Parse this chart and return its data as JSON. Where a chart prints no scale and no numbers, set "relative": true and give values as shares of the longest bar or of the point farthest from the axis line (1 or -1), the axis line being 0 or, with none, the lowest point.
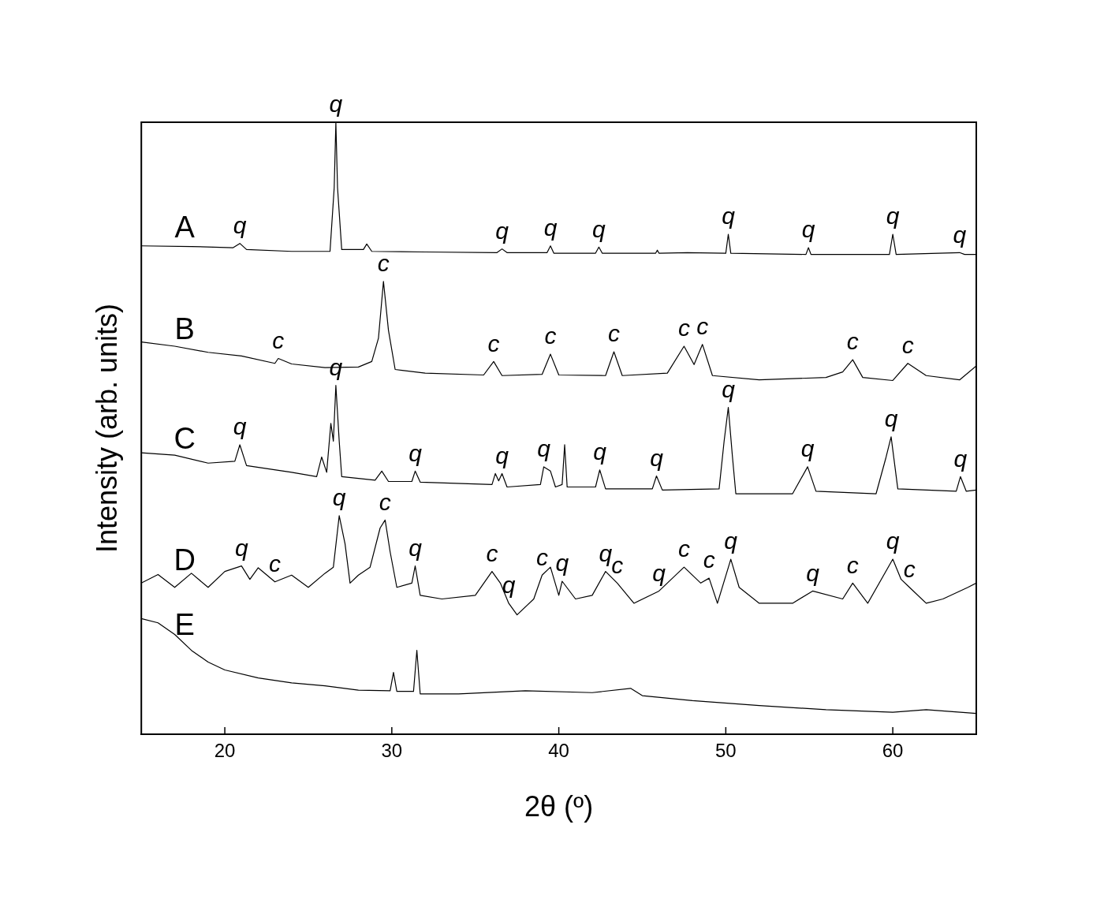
{
  "chart_data": {
    "type": "line",
    "relative": true,
    "xlabel": "2θ (º)",
    "ylabel": "Intensity (arb. units)",
    "xlim": [
      15,
      65
    ],
    "xticks": [
      20,
      30,
      40,
      50,
      60
    ],
    "legend": false,
    "grid": false,
    "series": [
      {
        "name": "A",
        "color": "#000000",
        "x": [
          15,
          18,
          20.5,
          20.9,
          21.3,
          24,
          26.3,
          26.55,
          26.65,
          26.75,
          27,
          28.3,
          28.5,
          28.8,
          32,
          36.3,
          36.6,
          36.9,
          39.3,
          39.5,
          39.7,
          42.2,
          42.4,
          42.6,
          45.8,
          45.9,
          46,
          47.7,
          50,
          50.15,
          50.3,
          54.8,
          54.95,
          55.1,
          59.8,
          60,
          60.2,
          64,
          64.3,
          65
        ],
        "values": [
          0.798,
          0.797,
          0.795,
          0.802,
          0.792,
          0.789,
          0.789,
          0.893,
          1,
          0.893,
          0.792,
          0.792,
          0.801,
          0.789,
          0.788,
          0.787,
          0.793,
          0.787,
          0.787,
          0.798,
          0.786,
          0.786,
          0.796,
          0.786,
          0.786,
          0.791,
          0.786,
          0.787,
          0.786,
          0.817,
          0.786,
          0.784,
          0.795,
          0.784,
          0.784,
          0.817,
          0.784,
          0.787,
          0.784,
          0.784
        ]
      },
      {
        "name": "B",
        "color": "#000000",
        "x": [
          15,
          17,
          19,
          21,
          23,
          23.2,
          24,
          26,
          28,
          28.8,
          29.2,
          29.5,
          29.8,
          30.2,
          32,
          35.5,
          36.1,
          36.6,
          39,
          39.5,
          40,
          42.8,
          43.3,
          43.8,
          46.5,
          47.5,
          48.1,
          48.6,
          49.2,
          52,
          56,
          57,
          57.6,
          58.2,
          60,
          60.9,
          62,
          64,
          65
        ],
        "values": [
          0.641,
          0.634,
          0.624,
          0.618,
          0.606,
          0.614,
          0.605,
          0.599,
          0.6,
          0.609,
          0.647,
          0.74,
          0.66,
          0.596,
          0.59,
          0.587,
          0.609,
          0.586,
          0.588,
          0.621,
          0.587,
          0.586,
          0.625,
          0.586,
          0.59,
          0.634,
          0.604,
          0.637,
          0.586,
          0.579,
          0.583,
          0.592,
          0.612,
          0.583,
          0.578,
          0.606,
          0.586,
          0.579,
          0.602
        ]
      },
      {
        "name": "C",
        "color": "#000000",
        "x": [
          15,
          17,
          19,
          20.6,
          20.9,
          21.3,
          24,
          25.5,
          25.8,
          26.1,
          26.35,
          26.5,
          26.65,
          26.85,
          27,
          29,
          29.4,
          29.8,
          31.2,
          31.4,
          31.7,
          36,
          36.2,
          36.4,
          36.6,
          36.9,
          38.9,
          39.1,
          39.5,
          39.8,
          40.2,
          40.35,
          40.5,
          42.2,
          42.45,
          42.8,
          45.6,
          45.85,
          46.2,
          49.6,
          49.9,
          50.15,
          50.4,
          50.6,
          54,
          54.9,
          55.4,
          59,
          59.6,
          59.9,
          60.3,
          63.8,
          64.05,
          64.4,
          65
        ],
        "values": [
          0.46,
          0.456,
          0.443,
          0.446,
          0.473,
          0.439,
          0.428,
          0.421,
          0.453,
          0.428,
          0.508,
          0.479,
          0.57,
          0.479,
          0.421,
          0.415,
          0.43,
          0.413,
          0.413,
          0.43,
          0.412,
          0.408,
          0.426,
          0.414,
          0.426,
          0.404,
          0.408,
          0.437,
          0.43,
          0.404,
          0.408,
          0.473,
          0.404,
          0.404,
          0.432,
          0.401,
          0.401,
          0.422,
          0.399,
          0.401,
          0.479,
          0.534,
          0.453,
          0.393,
          0.393,
          0.437,
          0.397,
          0.393,
          0.453,
          0.486,
          0.401,
          0.397,
          0.421,
          0.397,
          0.399
        ]
      },
      {
        "name": "D",
        "color": "#000000",
        "x": [
          15,
          16,
          17,
          18,
          19,
          20,
          21,
          21.5,
          22,
          23,
          24,
          25,
          26,
          26.5,
          26.85,
          27.2,
          27.5,
          28,
          28.7,
          29.3,
          29.6,
          29.9,
          30.3,
          31.2,
          31.4,
          31.7,
          33,
          35,
          36,
          36.5,
          37,
          37.5,
          38.5,
          39,
          39.5,
          40,
          40.2,
          41,
          42,
          42.8,
          43.5,
          44.5,
          46,
          47.5,
          48.5,
          49,
          49.5,
          50.3,
          50.8,
          52,
          54,
          55.2,
          57,
          57.6,
          58.5,
          60,
          60.5,
          61,
          62,
          63,
          64.5,
          65
        ],
        "values": [
          0.247,
          0.261,
          0.24,
          0.263,
          0.24,
          0.266,
          0.275,
          0.253,
          0.272,
          0.249,
          0.26,
          0.24,
          0.263,
          0.273,
          0.357,
          0.311,
          0.247,
          0.26,
          0.273,
          0.337,
          0.35,
          0.298,
          0.24,
          0.247,
          0.275,
          0.227,
          0.221,
          0.227,
          0.266,
          0.247,
          0.214,
          0.195,
          0.221,
          0.26,
          0.273,
          0.227,
          0.25,
          0.221,
          0.227,
          0.266,
          0.247,
          0.214,
          0.234,
          0.273,
          0.247,
          0.255,
          0.214,
          0.286,
          0.24,
          0.214,
          0.214,
          0.234,
          0.221,
          0.247,
          0.214,
          0.286,
          0.253,
          0.24,
          0.214,
          0.221,
          0.24,
          0.247
        ]
      },
      {
        "name": "E",
        "color": "#000000",
        "x": [
          15,
          16,
          17,
          18,
          19,
          20,
          22,
          24,
          26,
          28,
          29.9,
          30.1,
          30.3,
          31.3,
          31.5,
          31.7,
          34,
          38,
          42,
          44.3,
          45,
          48,
          52,
          56,
          60,
          62,
          65
        ],
        "values": [
          0.189,
          0.182,
          0.163,
          0.137,
          0.118,
          0.105,
          0.092,
          0.084,
          0.079,
          0.072,
          0.071,
          0.101,
          0.07,
          0.07,
          0.137,
          0.066,
          0.066,
          0.071,
          0.068,
          0.075,
          0.063,
          0.055,
          0.047,
          0.04,
          0.036,
          0.04,
          0.034
        ]
      }
    ],
    "annotations": [
      {
        "text": "q",
        "x": 20.9,
        "y": 0.802
      },
      {
        "text": "q",
        "x": 26.65,
        "y": 1
      },
      {
        "text": "q",
        "x": 36.6,
        "y": 0.793
      },
      {
        "text": "q",
        "x": 39.5,
        "y": 0.798
      },
      {
        "text": "q",
        "x": 42.4,
        "y": 0.796
      },
      {
        "text": "q",
        "x": 50.15,
        "y": 0.817
      },
      {
        "text": "q",
        "x": 54.95,
        "y": 0.795
      },
      {
        "text": "q",
        "x": 60,
        "y": 0.817
      },
      {
        "text": "q",
        "x": 64,
        "y": 0.787
      },
      {
        "text": "c",
        "x": 23.2,
        "y": 0.614
      },
      {
        "text": "c",
        "x": 29.5,
        "y": 0.74
      },
      {
        "text": "c",
        "x": 36.1,
        "y": 0.609
      },
      {
        "text": "c",
        "x": 39.5,
        "y": 0.621
      },
      {
        "text": "c",
        "x": 43.3,
        "y": 0.625
      },
      {
        "text": "c",
        "x": 47.5,
        "y": 0.634
      },
      {
        "text": "c",
        "x": 48.6,
        "y": 0.637
      },
      {
        "text": "c",
        "x": 57.6,
        "y": 0.612
      },
      {
        "text": "c",
        "x": 60.9,
        "y": 0.606
      },
      {
        "text": "q",
        "x": 20.9,
        "y": 0.473
      },
      {
        "text": "q",
        "x": 26.65,
        "y": 0.57
      },
      {
        "text": "q",
        "x": 31.4,
        "y": 0.43
      },
      {
        "text": "q",
        "x": 36.6,
        "y": 0.426
      },
      {
        "text": "q",
        "x": 39.1,
        "y": 0.437
      },
      {
        "text": "q",
        "x": 42.45,
        "y": 0.432
      },
      {
        "text": "q",
        "x": 45.85,
        "y": 0.422
      },
      {
        "text": "q",
        "x": 50.15,
        "y": 0.534
      },
      {
        "text": "q",
        "x": 54.9,
        "y": 0.437
      },
      {
        "text": "q",
        "x": 59.9,
        "y": 0.486
      },
      {
        "text": "q",
        "x": 64.05,
        "y": 0.421
      },
      {
        "text": "q",
        "x": 21,
        "y": 0.275
      },
      {
        "text": "c",
        "x": 23,
        "y": 0.249
      },
      {
        "text": "q",
        "x": 26.85,
        "y": 0.357
      },
      {
        "text": "c",
        "x": 29.6,
        "y": 0.35
      },
      {
        "text": "q",
        "x": 31.4,
        "y": 0.275
      },
      {
        "text": "c",
        "x": 36,
        "y": 0.266
      },
      {
        "text": "q",
        "x": 37,
        "y": 0.214
      },
      {
        "text": "c",
        "x": 39,
        "y": 0.26
      },
      {
        "text": "q",
        "x": 40.2,
        "y": 0.25
      },
      {
        "text": "q",
        "x": 42.8,
        "y": 0.266
      },
      {
        "text": "c",
        "x": 43.5,
        "y": 0.247
      },
      {
        "text": "q",
        "x": 46,
        "y": 0.234
      },
      {
        "text": "c",
        "x": 47.5,
        "y": 0.273
      },
      {
        "text": "c",
        "x": 49,
        "y": 0.255
      },
      {
        "text": "q",
        "x": 50.3,
        "y": 0.286
      },
      {
        "text": "q",
        "x": 55.2,
        "y": 0.234
      },
      {
        "text": "c",
        "x": 57.6,
        "y": 0.247
      },
      {
        "text": "q",
        "x": 60,
        "y": 0.286
      },
      {
        "text": "c",
        "x": 61,
        "y": 0.24
      }
    ]
  }
}
